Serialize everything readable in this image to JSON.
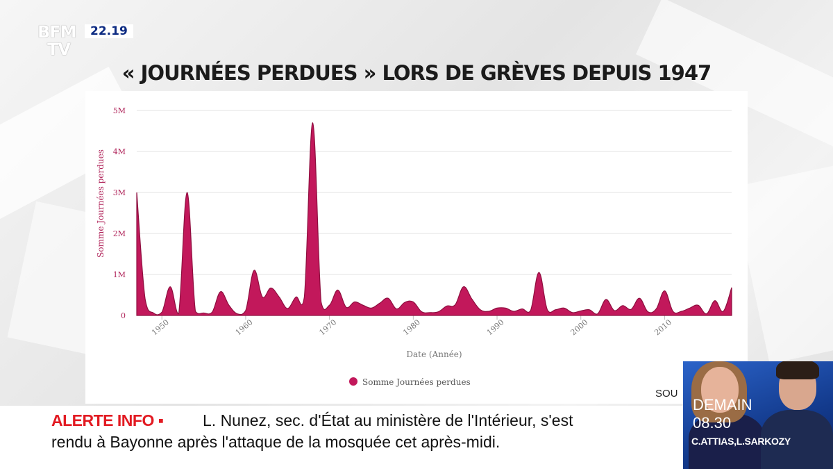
{
  "channel": {
    "logo_line1": "BFM",
    "logo_line2": "TV",
    "clock": "22.19"
  },
  "headline": "« JOURNÉES PERDUES » LORS DE GRÈVES DEPUIS 1947",
  "chart_data": {
    "type": "area",
    "title": "",
    "xlabel": "Date (Année)",
    "ylabel": "Somme Journées perdues",
    "legend": {
      "label": "Somme Journées perdues",
      "placement": "bottom"
    },
    "series_color": "#c2185b",
    "xlim": [
      1947,
      2018
    ],
    "ylim": [
      0,
      5000000
    ],
    "grid": true,
    "x_ticks": [
      1950,
      1960,
      1970,
      1980,
      1990,
      2000,
      2010
    ],
    "y_ticks": [
      {
        "value": 0,
        "label": "0"
      },
      {
        "value": 1000000,
        "label": "1M"
      },
      {
        "value": 2000000,
        "label": "2M"
      },
      {
        "value": 3000000,
        "label": "3M"
      },
      {
        "value": 4000000,
        "label": "4M"
      },
      {
        "value": 5000000,
        "label": "5M"
      }
    ],
    "series": [
      {
        "name": "Somme Journées perdues",
        "x": [
          1947,
          1948,
          1949,
          1950,
          1951,
          1952,
          1953,
          1954,
          1955,
          1956,
          1957,
          1958,
          1959,
          1960,
          1961,
          1962,
          1963,
          1964,
          1965,
          1966,
          1967,
          1968,
          1969,
          1970,
          1971,
          1972,
          1973,
          1974,
          1975,
          1976,
          1977,
          1978,
          1979,
          1980,
          1981,
          1982,
          1983,
          1984,
          1985,
          1986,
          1987,
          1988,
          1989,
          1990,
          1991,
          1992,
          1993,
          1994,
          1995,
          1996,
          1997,
          1998,
          1999,
          2000,
          2001,
          2002,
          2003,
          2004,
          2005,
          2006,
          2007,
          2008,
          2009,
          2010,
          2011,
          2012,
          2013,
          2014,
          2015,
          2016,
          2017,
          2018
        ],
        "y": [
          3000000,
          400000,
          60000,
          80000,
          700000,
          40000,
          3000000,
          100000,
          60000,
          80000,
          580000,
          250000,
          40000,
          120000,
          1100000,
          450000,
          670000,
          450000,
          170000,
          450000,
          450000,
          4700000,
          330000,
          250000,
          620000,
          200000,
          330000,
          250000,
          180000,
          300000,
          420000,
          160000,
          320000,
          330000,
          90000,
          70000,
          90000,
          230000,
          260000,
          700000,
          400000,
          140000,
          100000,
          180000,
          180000,
          100000,
          160000,
          120000,
          1050000,
          140000,
          140000,
          180000,
          70000,
          110000,
          140000,
          40000,
          390000,
          120000,
          240000,
          150000,
          420000,
          90000,
          160000,
          600000,
          100000,
          100000,
          180000,
          250000,
          40000,
          360000,
          100000,
          680000
        ]
      }
    ]
  },
  "source_label": "SOU",
  "ticker": {
    "label": "ALERTE INFO ▪",
    "line1": "L. Nunez, sec. d'État au ministère de l'Intérieur, s'est",
    "line2": "rendu à Bayonne après l'attaque de la mosquée cet après-midi."
  },
  "promo": {
    "day": "DEMAIN",
    "time": "08.30",
    "names": "C.ATTIAS,L.SARKOZY"
  }
}
